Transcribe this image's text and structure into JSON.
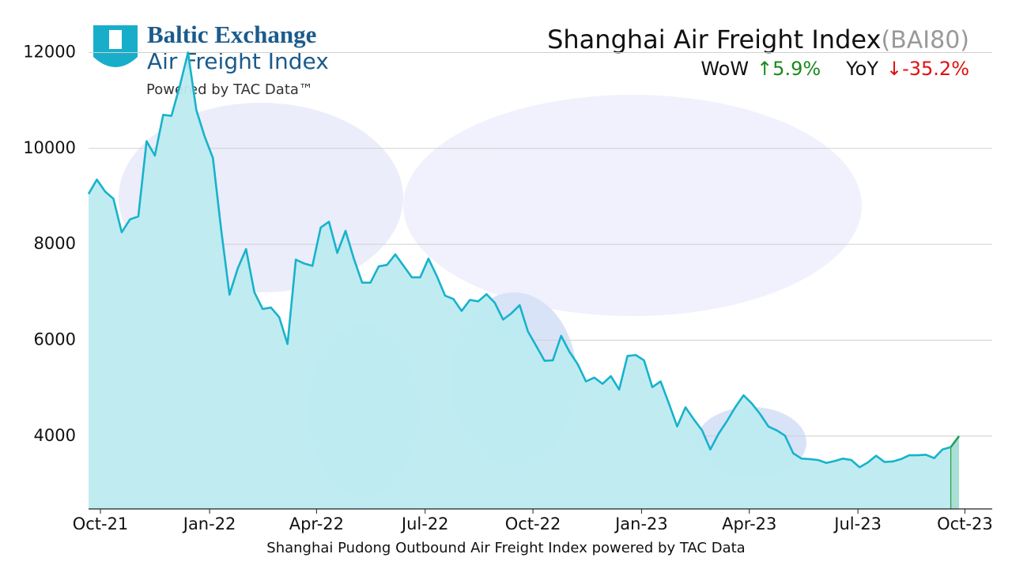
{
  "chart_data": {
    "type": "line",
    "title": "Shanghai Air Freight Index",
    "title_code": "(BAI80)",
    "logo": {
      "name": "Baltic Exchange",
      "subtitle": "Air Freight Index",
      "tagline": "Powered by TAC Data™"
    },
    "stats": [
      {
        "label": "WoW",
        "value": "↑5.9%",
        "color": "#1a8a1a"
      },
      {
        "label": "YoY",
        "value": "↓-35.2%",
        "color": "#e01010"
      }
    ],
    "x_label": "Shanghai Pudong Outbound Air Freight Index powered by TAC Data",
    "color": "#17b3cb",
    "fill_color": "#bdebf0",
    "highlight_color": "#2a9d3a",
    "values": [
      9050,
      9350,
      9100,
      8950,
      8250,
      8520,
      8580,
      10150,
      9850,
      10700,
      10680,
      11300,
      12000,
      10800,
      10250,
      9800,
      8300,
      6950,
      7500,
      7900,
      7000,
      6650,
      6680,
      6480,
      5920,
      7680,
      7600,
      7550,
      8350,
      8470,
      7820,
      8280,
      7700,
      7200,
      7200,
      7540,
      7570,
      7790,
      7550,
      7310,
      7310,
      7700,
      7340,
      6930,
      6860,
      6610,
      6840,
      6810,
      6960,
      6780,
      6430,
      6560,
      6730,
      6180,
      5880,
      5570,
      5580,
      6090,
      5760,
      5500,
      5140,
      5220,
      5090,
      5250,
      4970,
      5670,
      5690,
      5580,
      5020,
      5140,
      4680,
      4200,
      4600,
      4350,
      4120,
      3720,
      4050,
      4310,
      4600,
      4850,
      4680,
      4460,
      4200,
      4120,
      4010,
      3640,
      3530,
      3520,
      3500,
      3440,
      3480,
      3530,
      3500,
      3350,
      3450,
      3590,
      3460,
      3470,
      3520,
      3600,
      3600,
      3610,
      3540,
      3720,
      3770,
      4000
    ],
    "xlim": [
      0,
      109
    ],
    "xticks": [
      {
        "value": 1.43,
        "label": "Oct-21"
      },
      {
        "value": 14.6,
        "label": "Jan-22"
      },
      {
        "value": 27.5,
        "label": "Apr-22"
      },
      {
        "value": 40.6,
        "label": "Jul-22"
      },
      {
        "value": 53.6,
        "label": "Oct-22"
      },
      {
        "value": 66.7,
        "label": "Jan-23"
      },
      {
        "value": 79.7,
        "label": "Apr-23"
      },
      {
        "value": 92.8,
        "label": "Jul-23"
      },
      {
        "value": 105.7,
        "label": "Oct-23"
      }
    ],
    "ylim": [
      2480,
      12700
    ],
    "yticks": [
      4000,
      6000,
      8000,
      10000,
      12000
    ],
    "grid": true
  }
}
